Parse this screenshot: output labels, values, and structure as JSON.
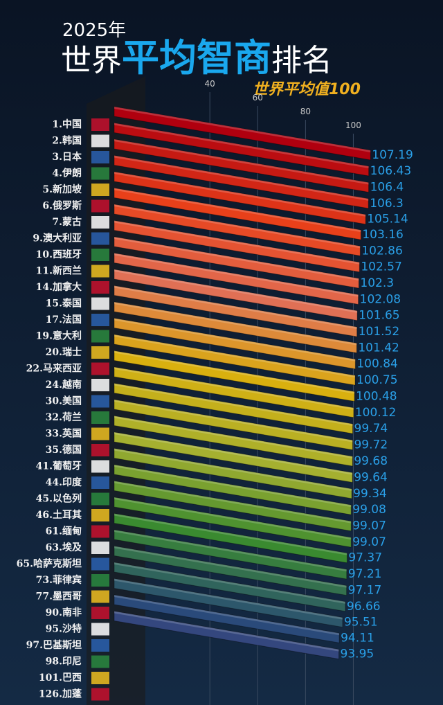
{
  "chart_data": {
    "type": "bar3d",
    "title_year": "2025年",
    "title_part1": "世界",
    "title_highlight": "平均智商",
    "title_part2": "排名",
    "subtitle": "世界平均值100",
    "categories": [
      "1.中国",
      "2.韩国",
      "3.日本",
      "4.伊朗",
      "5.新加坡",
      "6.俄罗斯",
      "7.蒙古",
      "9.澳大利亚",
      "10.西班牙",
      "11.新西兰",
      "14.加拿大",
      "15.泰国",
      "17.法国",
      "19.意大利",
      "20.瑞士",
      "22.马来西亚",
      "24.越南",
      "30.美国",
      "32.荷兰",
      "33.英国",
      "35.德国",
      "41.葡萄牙",
      "44.印度",
      "45.以色列",
      "46.土耳其",
      "61.缅甸",
      "63.埃及",
      "65.哈萨克斯坦",
      "73.菲律宾",
      "77.墨西哥",
      "90.南非",
      "95.沙特",
      "97.巴基斯坦",
      "98.印尼",
      "101.巴西",
      "126.加蓬"
    ],
    "series": [
      {
        "values": [
          107.19,
          106.43,
          106.4,
          106.3,
          105.14,
          103.16,
          102.86,
          102.57,
          102.3,
          102.08,
          101.65,
          101.52,
          101.42,
          100.84,
          100.75,
          100.48,
          100.12,
          99.74,
          99.72,
          99.68,
          99.64,
          99.34,
          99.08,
          99.07,
          99.07,
          97.37,
          97.21,
          97.17,
          96.66,
          95.51,
          94.11,
          93.95,
          null,
          null,
          null,
          null
        ]
      }
    ],
    "palette": [
      "#b0000f",
      "#e8401a",
      "#e07055",
      "#d9b00f",
      "#a5b030",
      "#3a8a30",
      "#2a4a7a",
      "#5a3a90"
    ],
    "xlim": [
      0,
      110
    ],
    "xticks": [
      40,
      60,
      80,
      100
    ]
  }
}
